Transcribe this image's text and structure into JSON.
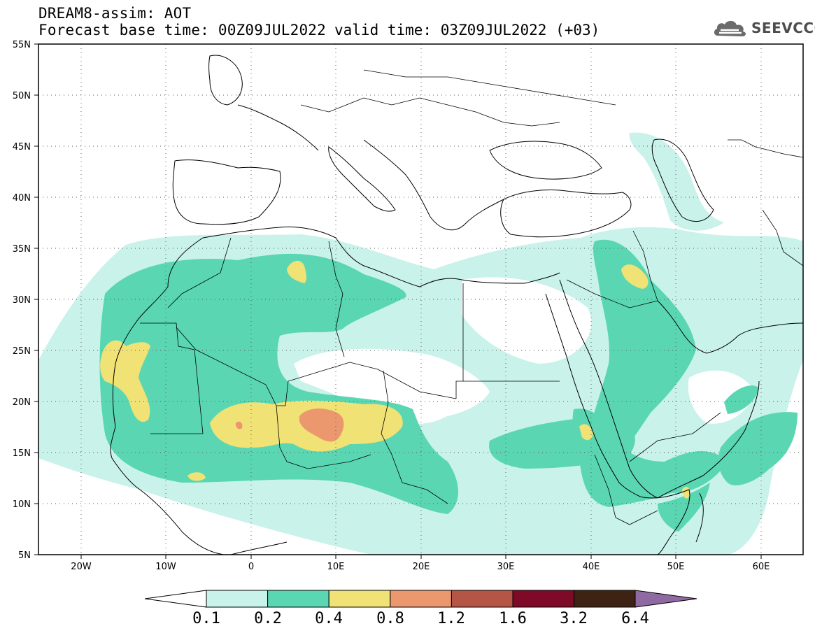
{
  "header": {
    "title": "DREAM8-assim: AOT",
    "base_time": "Forecast base time: 00Z09JUL2022",
    "valid_time": "valid time: 03Z09JUL2022 (+03)"
  },
  "logo": {
    "text": "SEEVCCC",
    "icon": "cloud-logo-icon"
  },
  "axes": {
    "lat_labels": [
      "55N",
      "50N",
      "45N",
      "40N",
      "35N",
      "30N",
      "25N",
      "20N",
      "15N",
      "10N",
      "5N"
    ],
    "lon_labels": [
      "20W",
      "10W",
      "0",
      "10E",
      "20E",
      "30E",
      "40E",
      "50E",
      "60E"
    ]
  },
  "colorbar": {
    "labels": [
      "0.1",
      "0.2",
      "0.4",
      "0.8",
      "1.2",
      "1.6",
      "3.2",
      "6.4"
    ],
    "colors": [
      "#c8f2ea",
      "#5ad7b2",
      "#f1e276",
      "#eb986f",
      "#b55546",
      "#7e0a27",
      "#3e2314",
      "#8f6aa2"
    ]
  }
}
